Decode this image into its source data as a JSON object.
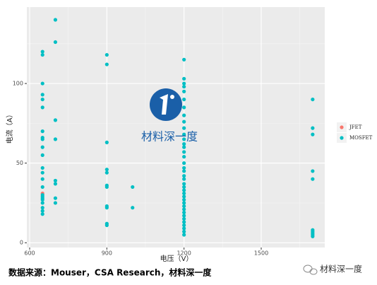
{
  "chart_data": {
    "type": "scatter",
    "x_label": "电压（V）",
    "y_label": "电流（A）",
    "xlim": [
      589,
      1747
    ],
    "ylim": [
      -3,
      148
    ],
    "xticks": [
      600,
      900,
      1200,
      1500
    ],
    "yticks": [
      0,
      50,
      100
    ],
    "minor_xticks": [
      750,
      1050,
      1350,
      1650
    ],
    "minor_yticks": [
      25,
      75,
      125
    ],
    "grid": true,
    "legend": "right",
    "series": [
      {
        "name": "JFET",
        "color": "#F8766D",
        "x": [
          650
        ],
        "values": [
          31
        ]
      },
      {
        "name": "MOSFET",
        "color": "#00BFC4",
        "x": [
          650,
          650,
          650,
          650,
          650,
          650,
          650,
          650,
          650,
          650,
          650,
          650,
          650,
          650,
          650,
          650,
          650,
          650,
          650,
          650,
          650,
          650,
          650,
          700,
          700,
          700,
          700,
          700,
          700,
          700,
          700,
          900,
          900,
          900,
          900,
          900,
          900,
          900,
          900,
          900,
          900,
          900,
          1000,
          1000,
          1200,
          1200,
          1200,
          1200,
          1200,
          1200,
          1200,
          1200,
          1200,
          1200,
          1200,
          1200,
          1200,
          1200,
          1200,
          1200,
          1200,
          1200,
          1200,
          1200,
          1200,
          1200,
          1200,
          1200,
          1200,
          1200,
          1200,
          1200,
          1200,
          1200,
          1200,
          1200,
          1200,
          1200,
          1200,
          1200,
          1200,
          1200,
          1700,
          1700,
          1700,
          1700,
          1700,
          1700,
          1700,
          1700,
          1700,
          1700
        ],
        "values": [
          120,
          118,
          100,
          93,
          90,
          85,
          70,
          66,
          65,
          60,
          55,
          47,
          44,
          40,
          35,
          30,
          29,
          28,
          27,
          25,
          22,
          20,
          18,
          140,
          126,
          77,
          65,
          39,
          37,
          28,
          25,
          118,
          112,
          63,
          46,
          44,
          36,
          35,
          23,
          22,
          12,
          11,
          35,
          22,
          115,
          103,
          100,
          98,
          95,
          90,
          85,
          80,
          76,
          72,
          68,
          65,
          62,
          60,
          57,
          54,
          50,
          47,
          45,
          42,
          40,
          37,
          35,
          33,
          31,
          29,
          27,
          25,
          23,
          21,
          19,
          17,
          15,
          13,
          11,
          9,
          7,
          5,
          90,
          72,
          68,
          45,
          40,
          8,
          7,
          6,
          5,
          4
        ]
      }
    ],
    "watermark": "材料深一度",
    "source": "数据来源：Mouser，CSA Research，材料深一度",
    "brand": "材料深一度"
  }
}
